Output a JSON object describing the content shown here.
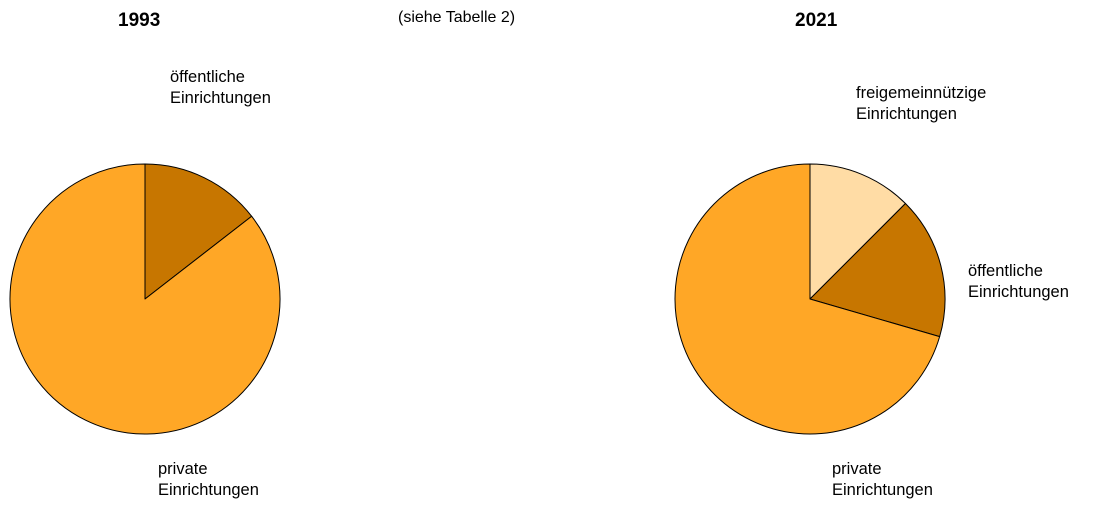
{
  "note": "(siehe Tabelle 2)",
  "chart_data": [
    {
      "type": "pie",
      "title": "1993",
      "start_angle_deg": 0,
      "direction": "clockwise",
      "slices": [
        {
          "label_lines": [
            "öffentliche",
            "Einrichtungen"
          ],
          "value": 14.5,
          "color": "#C77600"
        },
        {
          "label_lines": [
            "private",
            "Einrichtungen"
          ],
          "value": 85.5,
          "color": "#FFA726"
        }
      ]
    },
    {
      "type": "pie",
      "title": "2021",
      "start_angle_deg": 0,
      "direction": "clockwise",
      "slices": [
        {
          "label_lines": [
            "freigemeinnützige",
            "Einrichtungen"
          ],
          "value": 12.5,
          "color": "#FFDCA5"
        },
        {
          "label_lines": [
            "öffentliche",
            "Einrichtungen"
          ],
          "value": 17.0,
          "color": "#C77600"
        },
        {
          "label_lines": [
            "private",
            "Einrichtungen"
          ],
          "value": 70.5,
          "color": "#FFA726"
        }
      ]
    }
  ]
}
